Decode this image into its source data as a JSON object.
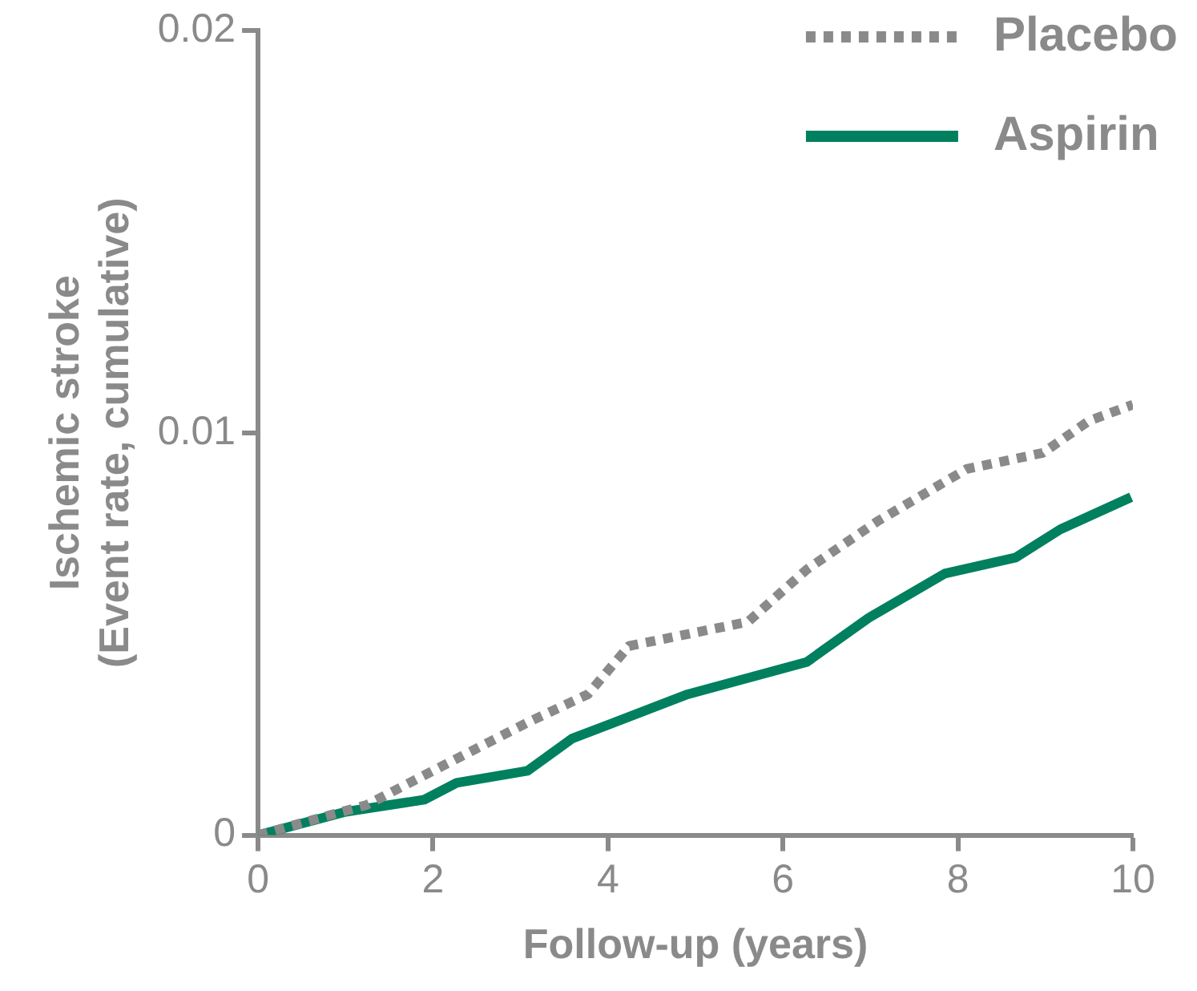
{
  "chart_data": {
    "type": "line",
    "xlabel": "Follow-up (years)",
    "ylabel": "Ischemic stroke\n(Event rate, cumulative)",
    "xlim": [
      0,
      10
    ],
    "xticks": [
      0,
      2,
      4,
      6,
      8,
      10
    ],
    "ylim": [
      0,
      0.02
    ],
    "yticks": [
      0,
      0.01,
      0.02
    ],
    "grid": false,
    "legend": "top right",
    "marker": "none",
    "series": [
      {
        "name": "Placebo",
        "color": "#8a8a8a",
        "line_style": "dotted",
        "x": [
          0,
          1.24,
          2.0,
          3.08,
          3.77,
          4.24,
          5.6,
          6.27,
          7.08,
          8.1,
          8.97,
          9.5,
          10.0
        ],
        "values": [
          0,
          0.00075,
          0.0016,
          0.0028,
          0.0035,
          0.0047,
          0.0053,
          0.0066,
          0.0078,
          0.0091,
          0.0095,
          0.0103,
          0.0107
        ]
      },
      {
        "name": "Aspirin",
        "color": "#00805f",
        "line_style": "solid",
        "x": [
          0,
          1.0,
          1.9,
          2.27,
          3.08,
          3.59,
          4.91,
          6.27,
          6.98,
          7.85,
          8.66,
          9.17,
          9.98
        ],
        "values": [
          0,
          0.00058,
          0.00088,
          0.0013,
          0.0016,
          0.0024,
          0.0035,
          0.0043,
          0.0054,
          0.0065,
          0.0069,
          0.0076,
          0.0084
        ]
      }
    ]
  }
}
